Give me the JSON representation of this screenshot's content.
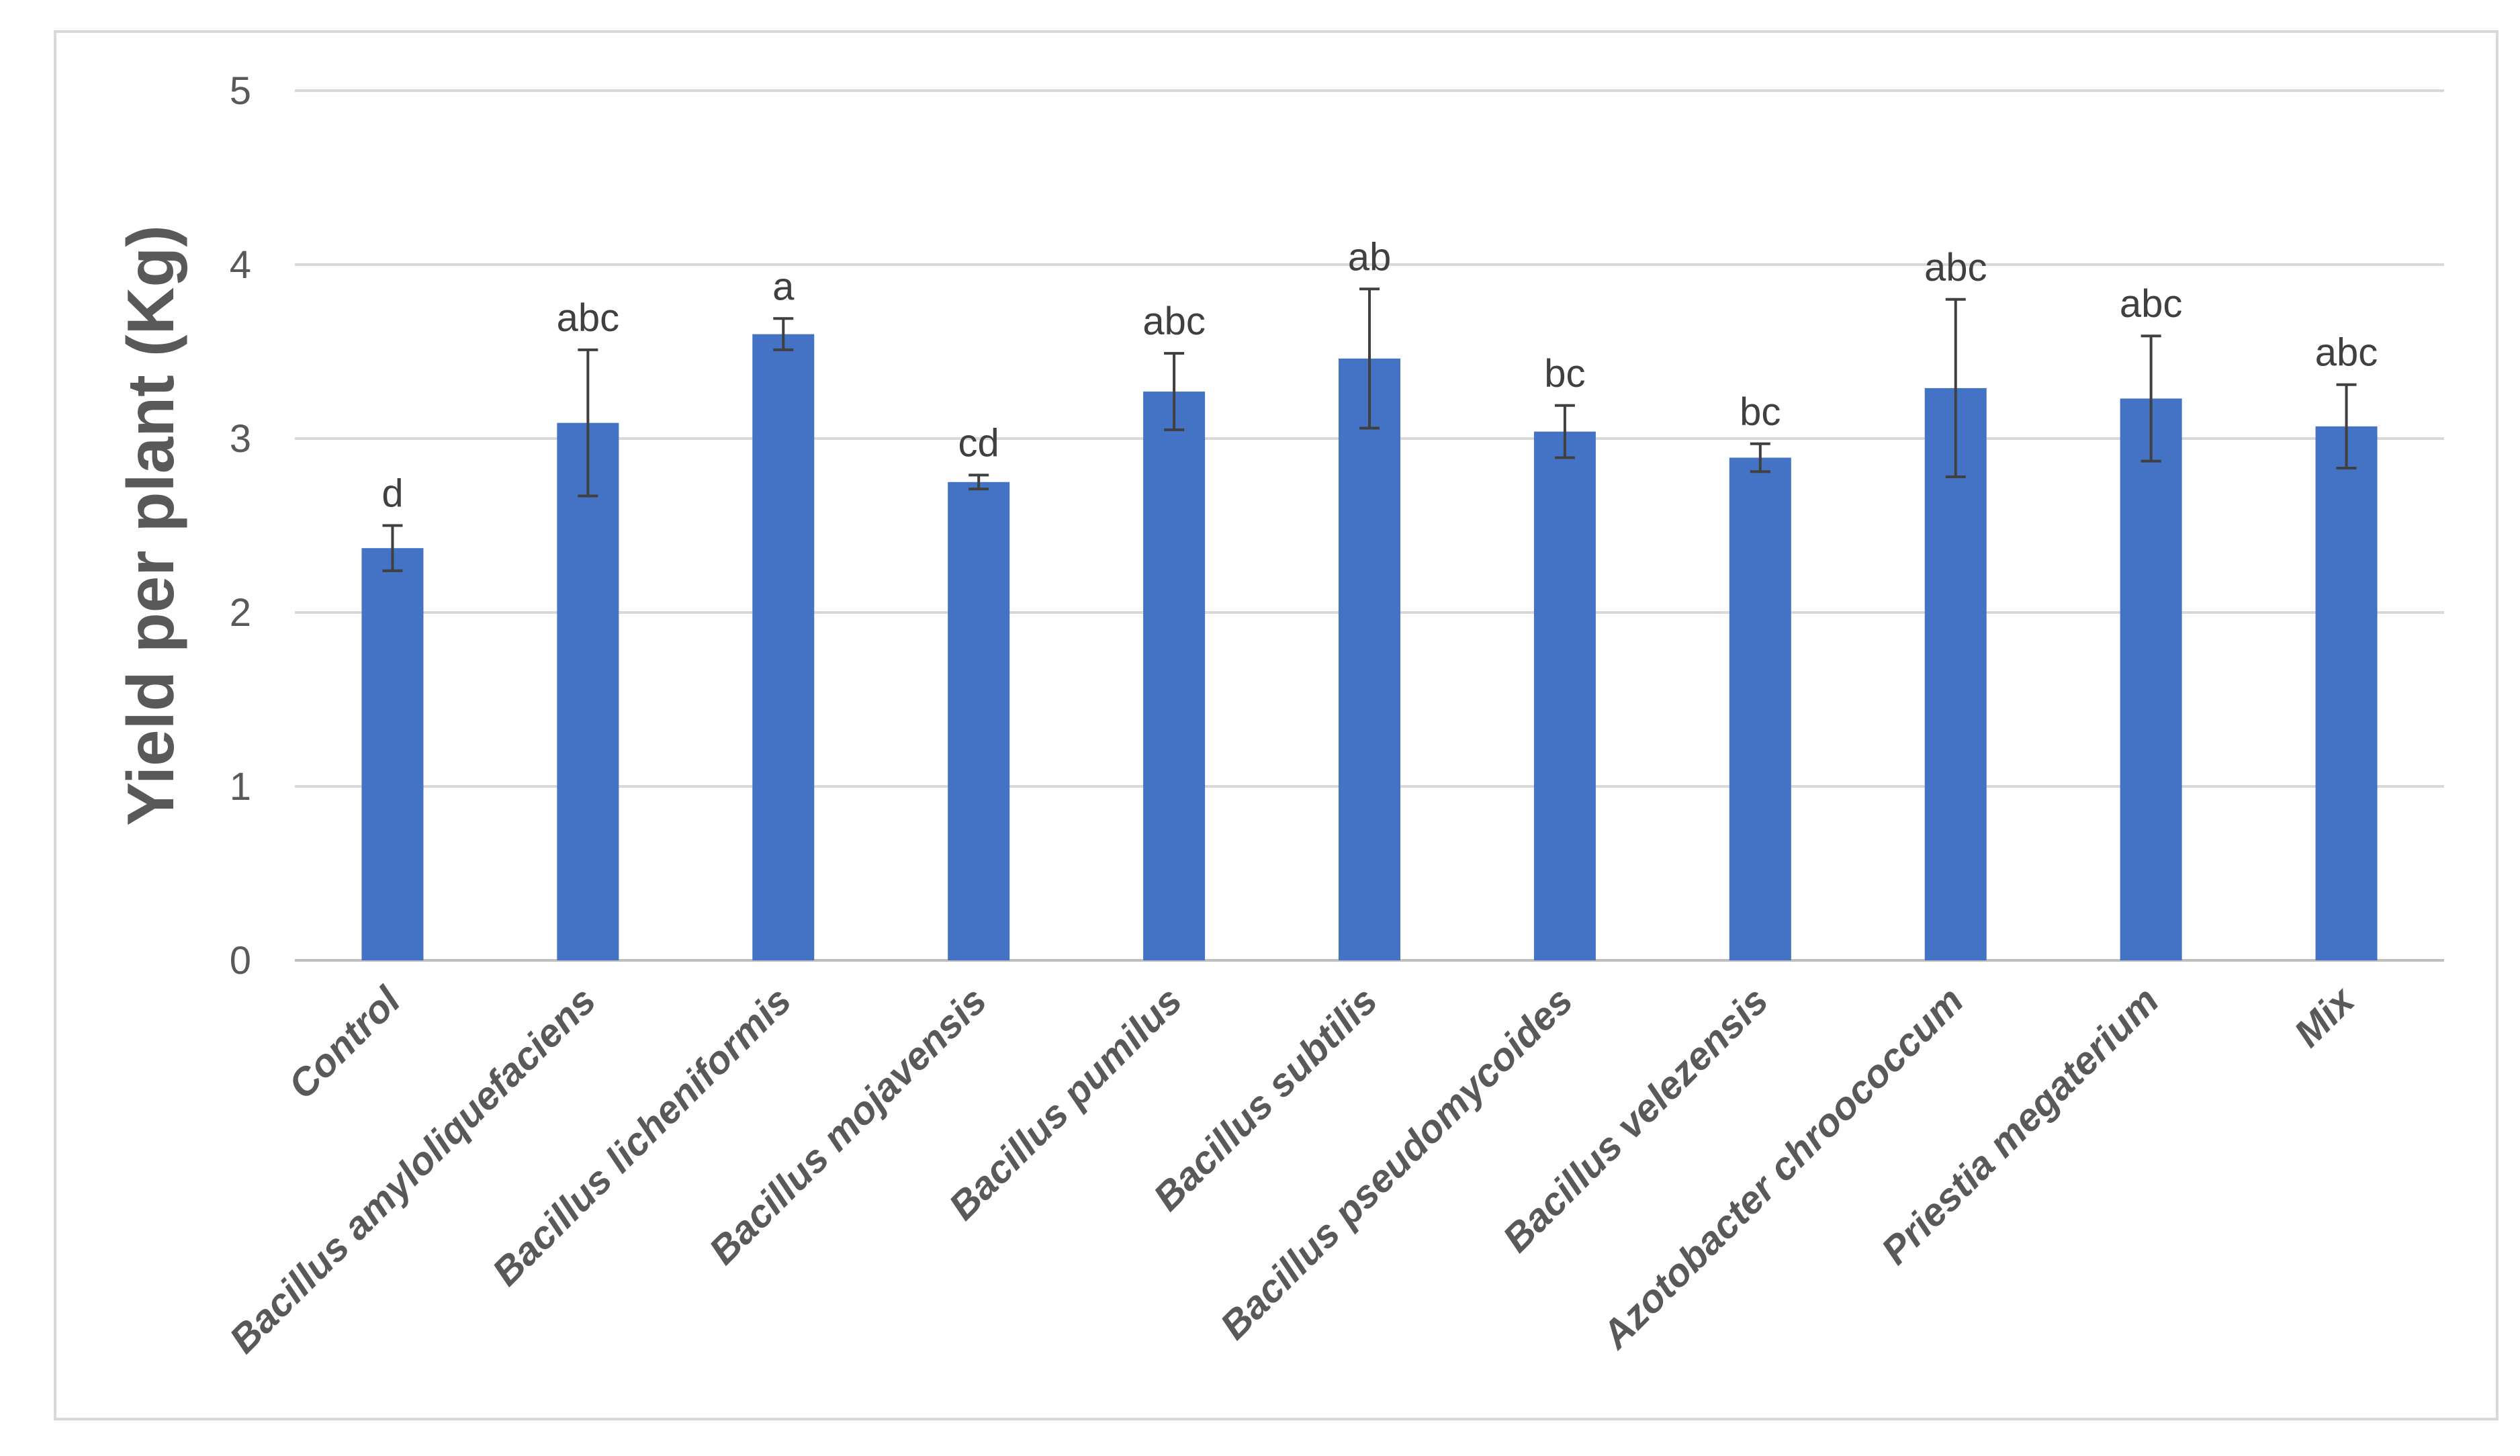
{
  "chart_data": {
    "type": "bar",
    "title": "",
    "xlabel": "",
    "ylabel": "Yield per plant (Kg)",
    "ylim": [
      0,
      5
    ],
    "yticks": [
      "0",
      "1",
      "2",
      "3",
      "4",
      "5"
    ],
    "grid": true,
    "legend": "none",
    "bar_color": "#4472C4",
    "categories": [
      "Control",
      "Bacillus amyloliquefaciens",
      "Bacillus licheniformis",
      "Bacillus mojavensis",
      "Bacillus pumilus",
      "Bacillus subtilis",
      "Bacillus pseudomycoides",
      "Bacillus velezensis",
      "Azotobacter chroococcum",
      "Priestia megaterium",
      "Mix"
    ],
    "values": [
      2.37,
      3.09,
      3.6,
      2.75,
      3.27,
      3.46,
      3.04,
      2.89,
      3.29,
      3.23,
      3.07
    ],
    "errors": [
      0.13,
      0.42,
      0.09,
      0.04,
      0.22,
      0.4,
      0.15,
      0.08,
      0.51,
      0.36,
      0.24
    ],
    "significance_letters": [
      "d",
      "abc",
      "a",
      "cd",
      "abc",
      "ab",
      "bc",
      "bc",
      "abc",
      "abc",
      "abc"
    ]
  }
}
